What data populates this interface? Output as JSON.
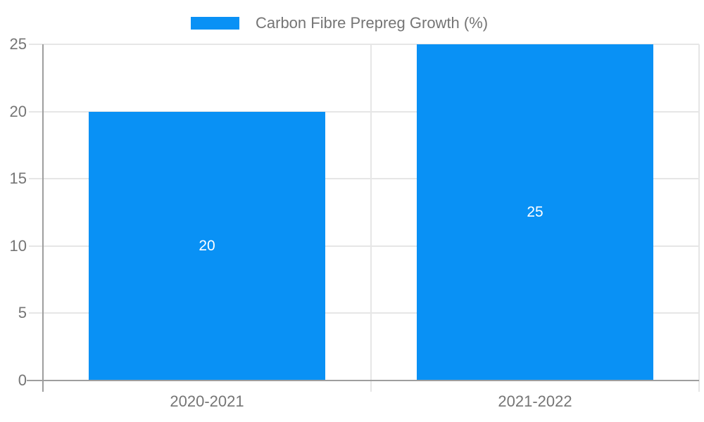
{
  "chart_data": {
    "type": "bar",
    "title": "Carbon Fibre Prepreg Growth (%)",
    "categories": [
      "2020-2021",
      "2021-2022"
    ],
    "values": [
      20,
      25
    ],
    "bar_labels": [
      "20",
      "25"
    ],
    "xlabel": "",
    "ylabel": "",
    "ylim": [
      0,
      25
    ],
    "yticks": [
      0,
      5,
      10,
      15,
      20,
      25
    ],
    "grid": true,
    "legend_position": "top"
  },
  "legend": {
    "label": "Carbon Fibre Prepreg Growth (%)"
  },
  "colors": {
    "bar": "#0991f5",
    "axis": "#9e9e9e",
    "gridline": "#e6e6e6",
    "tick_text": "#757575",
    "bar_label_text": "#ffffff",
    "background": "#ffffff"
  }
}
